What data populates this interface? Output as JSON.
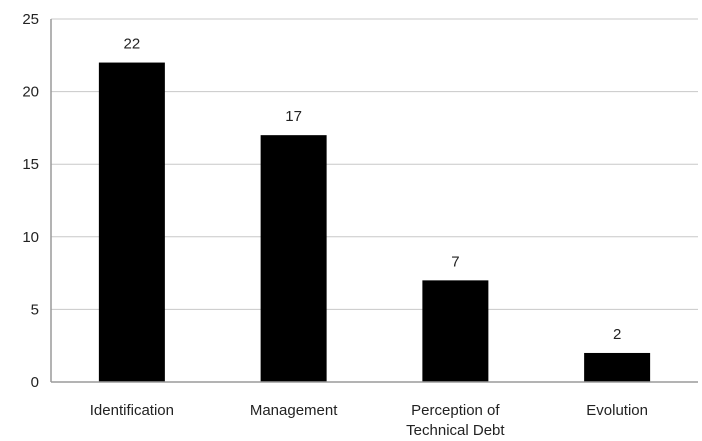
{
  "chart_data": {
    "type": "bar",
    "categories": [
      "Identification",
      "Management",
      "Perception of Technical Debt",
      "Evolution"
    ],
    "category_lines": [
      [
        "Identification"
      ],
      [
        "Management"
      ],
      [
        "Perception of",
        "Technical Debt"
      ],
      [
        "Evolution"
      ]
    ],
    "values": [
      22,
      17,
      7,
      2
    ],
    "data_labels": [
      "22",
      "17",
      "7",
      "2"
    ],
    "ylim": [
      0,
      25
    ],
    "yticks": [
      0,
      5,
      10,
      15,
      20,
      25
    ],
    "grid": true,
    "legend": "none",
    "bar_color": "#000000",
    "grid_color": "#c8c8c8",
    "axis_color": "#9a9a9a"
  }
}
